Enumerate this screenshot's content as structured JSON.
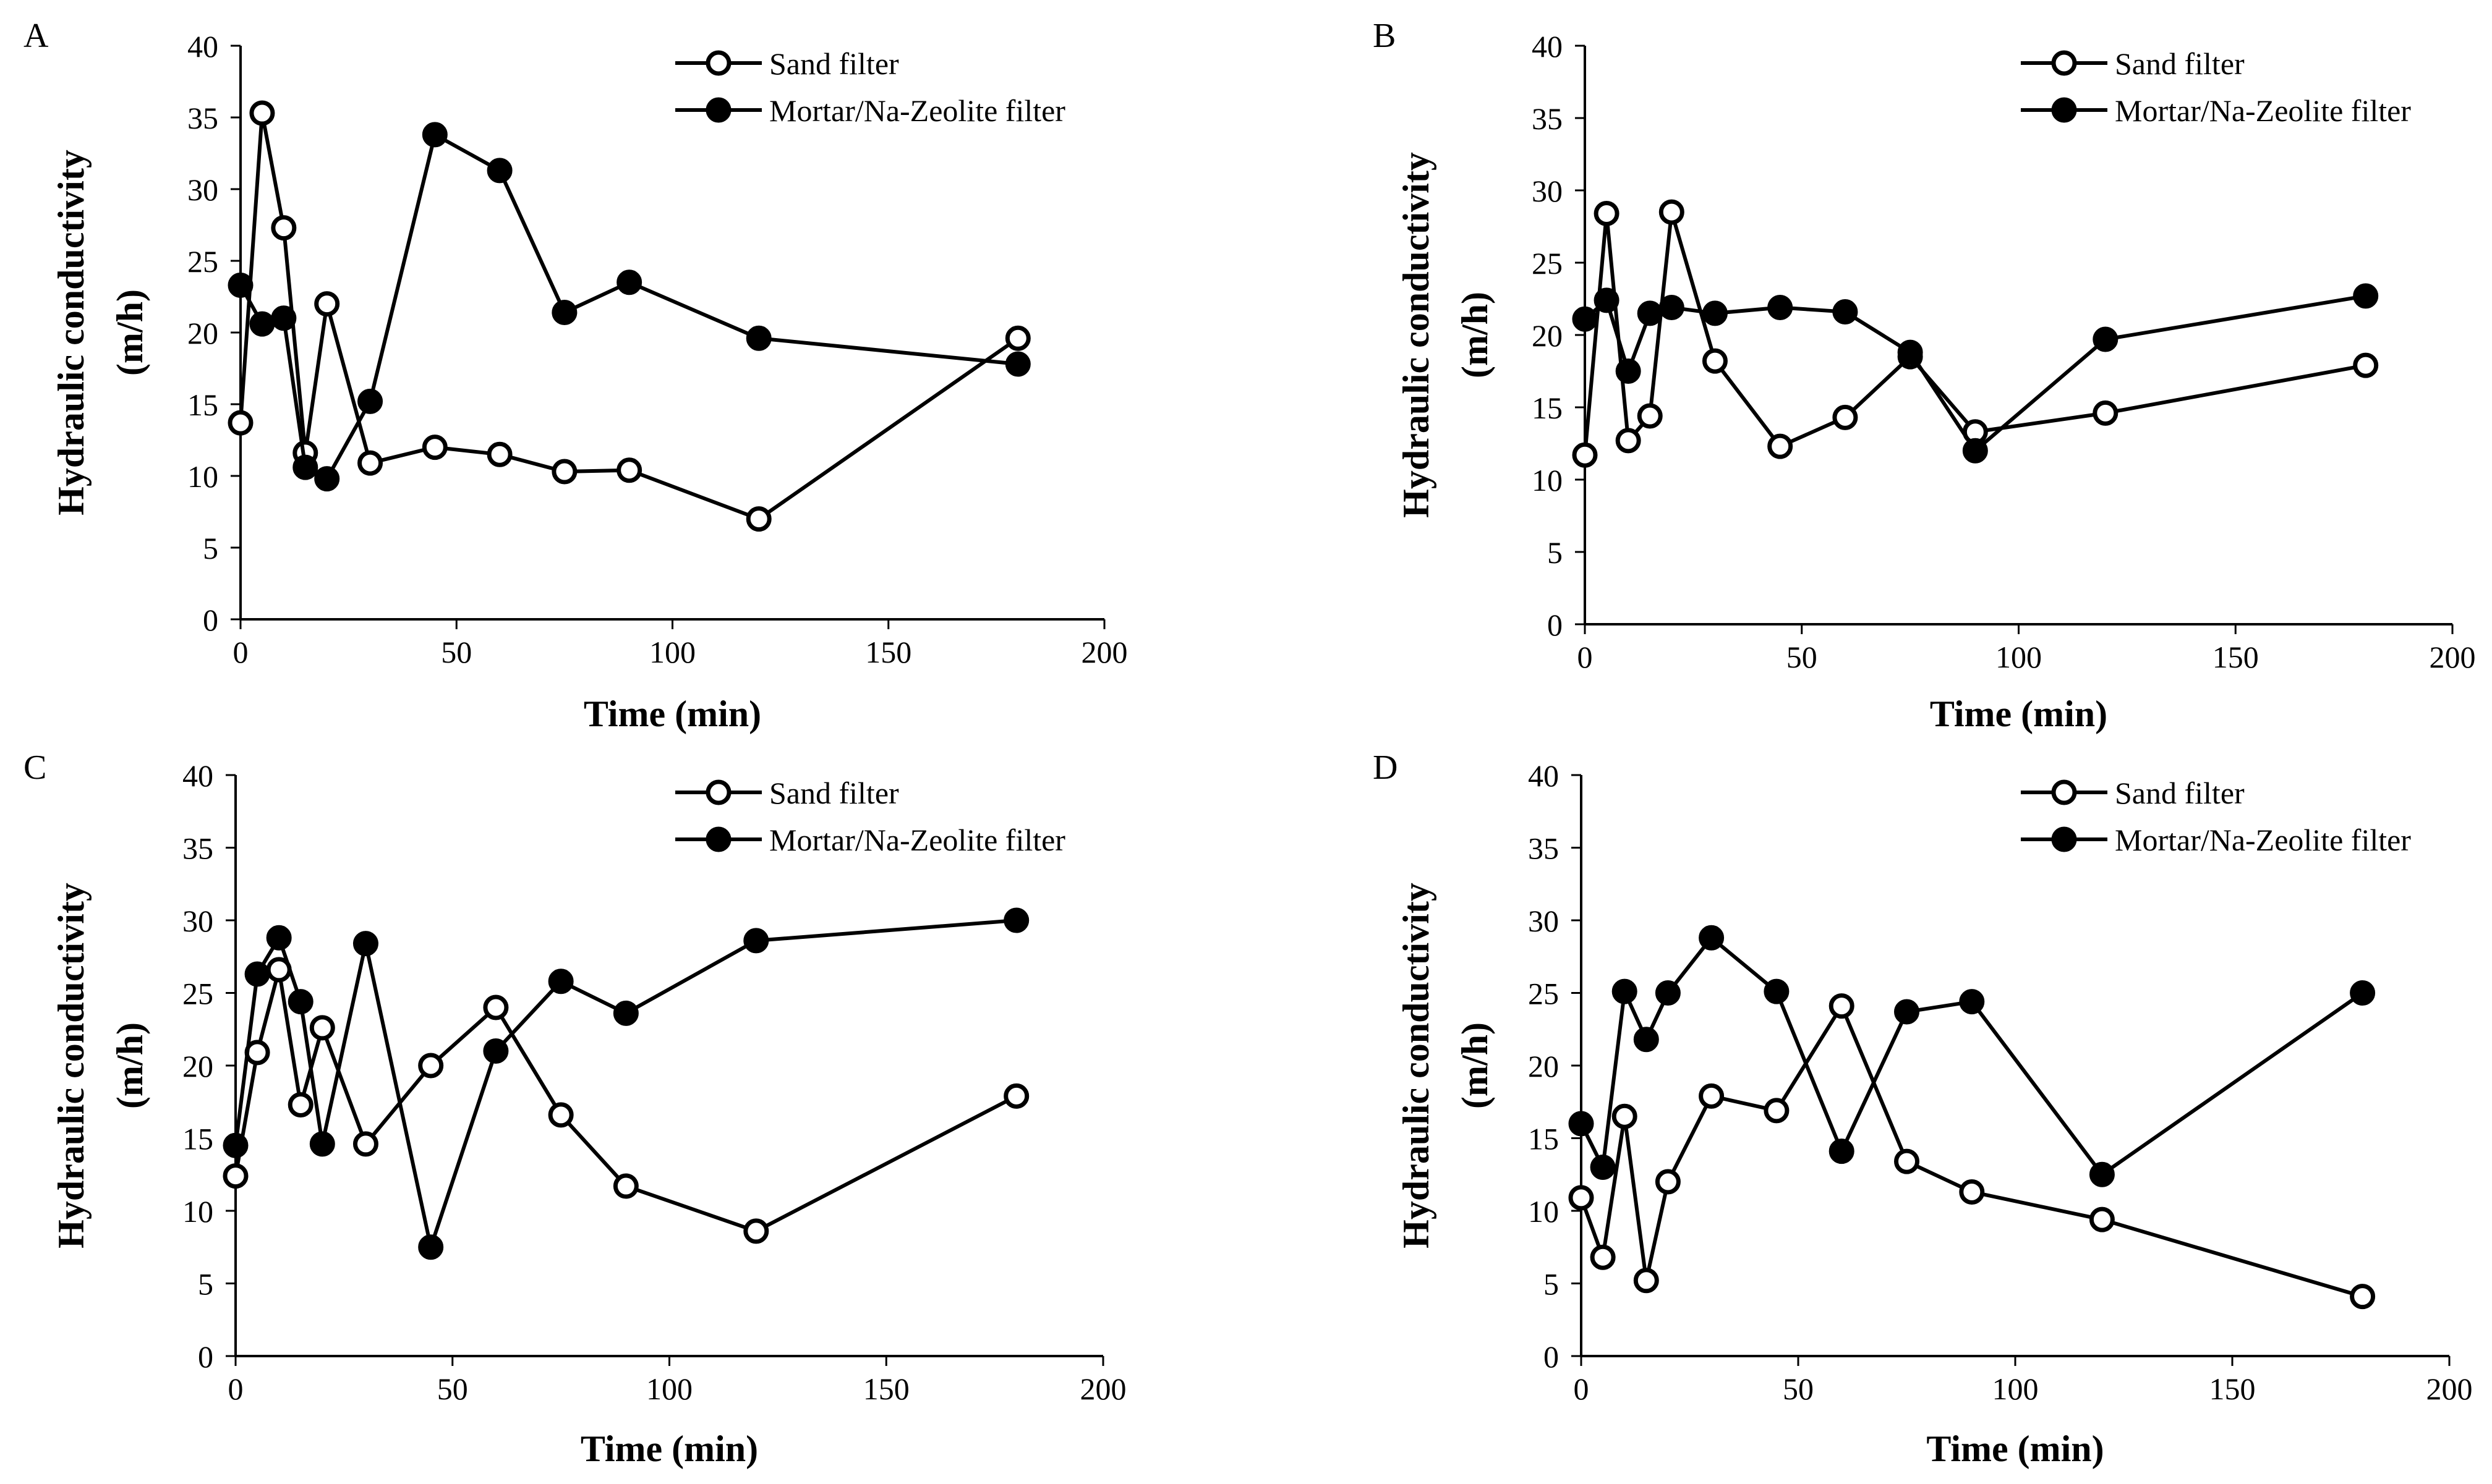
{
  "chart_data": [
    {
      "panel": "A",
      "type": "line",
      "title": "",
      "xlabel": "Time (min)",
      "ylabel": [
        "Hydraulic conductivity",
        "(m/h)"
      ],
      "xlim": [
        0,
        200
      ],
      "ylim": [
        0,
        40
      ],
      "x_ticks": [
        0,
        50,
        100,
        150,
        200
      ],
      "y_ticks": [
        0,
        5,
        10,
        15,
        20,
        25,
        30,
        35,
        40
      ],
      "grid": false,
      "legend_position": "top-right",
      "series": [
        {
          "name": "Sand filter",
          "marker": "open-circle",
          "x": [
            0,
            5,
            10,
            15,
            20,
            30,
            45,
            60,
            75,
            90,
            120,
            180
          ],
          "values": [
            13.7,
            35.3,
            27.3,
            11.6,
            22.0,
            10.9,
            12.0,
            11.5,
            10.3,
            10.4,
            7.0,
            19.6
          ]
        },
        {
          "name": "Mortar/Na-Zeolite filter",
          "marker": "filled-circle",
          "x": [
            0,
            5,
            10,
            15,
            20,
            30,
            45,
            60,
            75,
            90,
            120,
            180
          ],
          "values": [
            23.3,
            20.6,
            21.0,
            10.6,
            9.8,
            15.2,
            33.8,
            31.3,
            21.4,
            23.5,
            19.6,
            17.8
          ]
        }
      ]
    },
    {
      "panel": "B",
      "type": "line",
      "title": "",
      "xlabel": "Time (min)",
      "ylabel": [
        "Hydraulic conductivity",
        "(m/h)"
      ],
      "xlim": [
        0,
        200
      ],
      "ylim": [
        0,
        40
      ],
      "x_ticks": [
        0,
        50,
        100,
        150,
        200
      ],
      "y_ticks": [
        0,
        5,
        10,
        15,
        20,
        25,
        30,
        35,
        40
      ],
      "grid": false,
      "legend_position": "top-right",
      "series": [
        {
          "name": "Sand filter",
          "marker": "open-circle",
          "x": [
            0,
            5,
            10,
            15,
            20,
            30,
            45,
            60,
            75,
            90,
            120,
            180
          ],
          "values": [
            11.7,
            28.4,
            12.7,
            14.4,
            28.5,
            18.2,
            12.3,
            14.3,
            18.5,
            13.3,
            14.6,
            17.9
          ]
        },
        {
          "name": "Mortar/Na-Zeolite filter",
          "marker": "filled-circle",
          "x": [
            0,
            5,
            10,
            15,
            20,
            30,
            45,
            60,
            75,
            90,
            120,
            180
          ],
          "values": [
            21.1,
            22.4,
            17.5,
            21.5,
            21.9,
            21.5,
            21.9,
            21.6,
            18.8,
            12.0,
            19.7,
            22.7
          ]
        }
      ]
    },
    {
      "panel": "C",
      "type": "line",
      "title": "",
      "xlabel": "Time (min)",
      "ylabel": [
        "Hydraulic conductivity",
        "(m/h)"
      ],
      "xlim": [
        0,
        200
      ],
      "ylim": [
        0,
        40
      ],
      "x_ticks": [
        0,
        50,
        100,
        150,
        200
      ],
      "y_ticks": [
        0,
        5,
        10,
        15,
        20,
        25,
        30,
        35,
        40
      ],
      "grid": false,
      "legend_position": "top-right",
      "series": [
        {
          "name": "Sand filter",
          "marker": "open-circle",
          "x": [
            0,
            5,
            10,
            15,
            20,
            30,
            45,
            60,
            75,
            90,
            120,
            180
          ],
          "values": [
            12.4,
            20.9,
            26.6,
            17.3,
            22.6,
            14.6,
            20.0,
            24.0,
            16.6,
            11.7,
            8.6,
            17.9
          ]
        },
        {
          "name": "Mortar/Na-Zeolite filter",
          "marker": "filled-circle",
          "x": [
            0,
            5,
            10,
            15,
            20,
            30,
            45,
            60,
            75,
            90,
            120,
            180
          ],
          "values": [
            14.5,
            26.3,
            28.8,
            24.4,
            14.6,
            28.4,
            7.5,
            21.0,
            25.8,
            23.6,
            28.6,
            30.0
          ]
        }
      ]
    },
    {
      "panel": "D",
      "type": "line",
      "title": "",
      "xlabel": "Time (min)",
      "ylabel": [
        "Hydraulic conductivity",
        "(m/h)"
      ],
      "xlim": [
        0,
        200
      ],
      "ylim": [
        0,
        40
      ],
      "x_ticks": [
        0,
        50,
        100,
        150,
        200
      ],
      "y_ticks": [
        0,
        5,
        10,
        15,
        20,
        25,
        30,
        35,
        40
      ],
      "grid": false,
      "legend_position": "top-right",
      "series": [
        {
          "name": "Sand filter",
          "marker": "open-circle",
          "x": [
            0,
            5,
            10,
            15,
            20,
            30,
            45,
            60,
            75,
            90,
            120,
            180
          ],
          "values": [
            10.9,
            6.8,
            16.5,
            5.2,
            12.0,
            17.9,
            16.9,
            24.1,
            13.4,
            11.3,
            9.4,
            4.1
          ]
        },
        {
          "name": "Mortar/Na-Zeolite filter",
          "marker": "filled-circle",
          "x": [
            0,
            5,
            10,
            15,
            20,
            30,
            45,
            60,
            75,
            90,
            120,
            180
          ],
          "values": [
            16.0,
            13.0,
            25.1,
            21.8,
            25.0,
            28.8,
            25.1,
            14.1,
            23.7,
            24.4,
            12.5,
            25.0
          ]
        }
      ]
    }
  ],
  "colors": {
    "line": "#000000",
    "open_marker_fill": "#ffffff",
    "filled_marker_fill": "#000000"
  }
}
